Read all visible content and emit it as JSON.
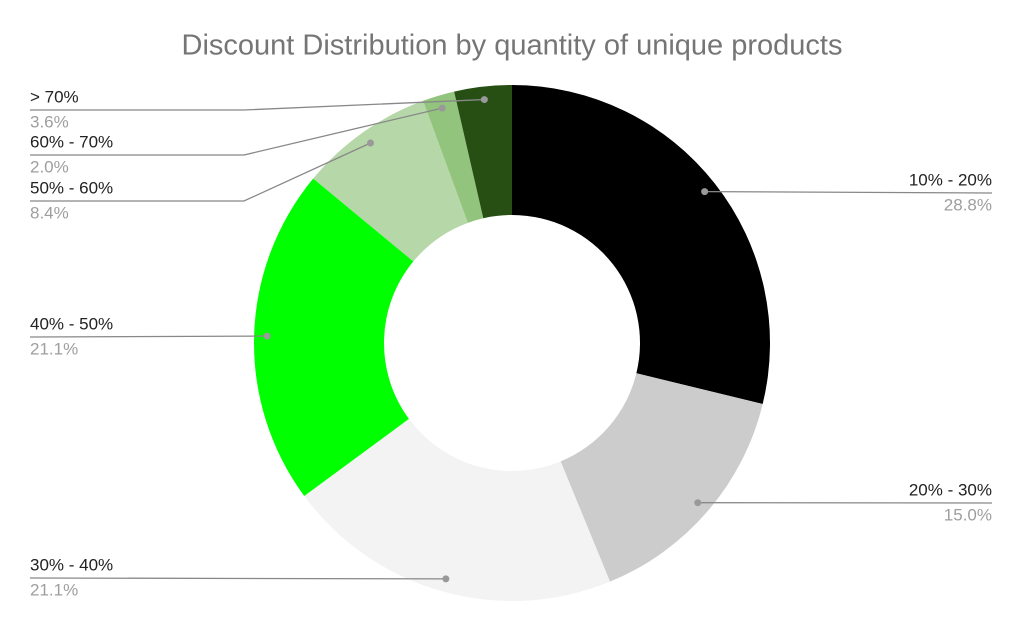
{
  "chart_data": {
    "type": "donut",
    "title": "Discount Distribution by quantity of unique products",
    "categories": [
      "10% - 20%",
      "20% - 30%",
      "30% - 40%",
      "40% - 50%",
      "50% - 60%",
      "60% - 70%",
      "> 70%"
    ],
    "values": [
      28.8,
      15.0,
      21.1,
      21.1,
      8.4,
      2.0,
      3.6
    ],
    "value_labels": [
      "28.8%",
      "15.0%",
      "21.1%",
      "21.1%",
      "8.4%",
      "2.0%",
      "3.6%"
    ],
    "colors": [
      "#000000",
      "#cccccc",
      "#f3f3f3",
      "#00ff00",
      "#b6d7a8",
      "#93c47d",
      "#274e13"
    ]
  }
}
